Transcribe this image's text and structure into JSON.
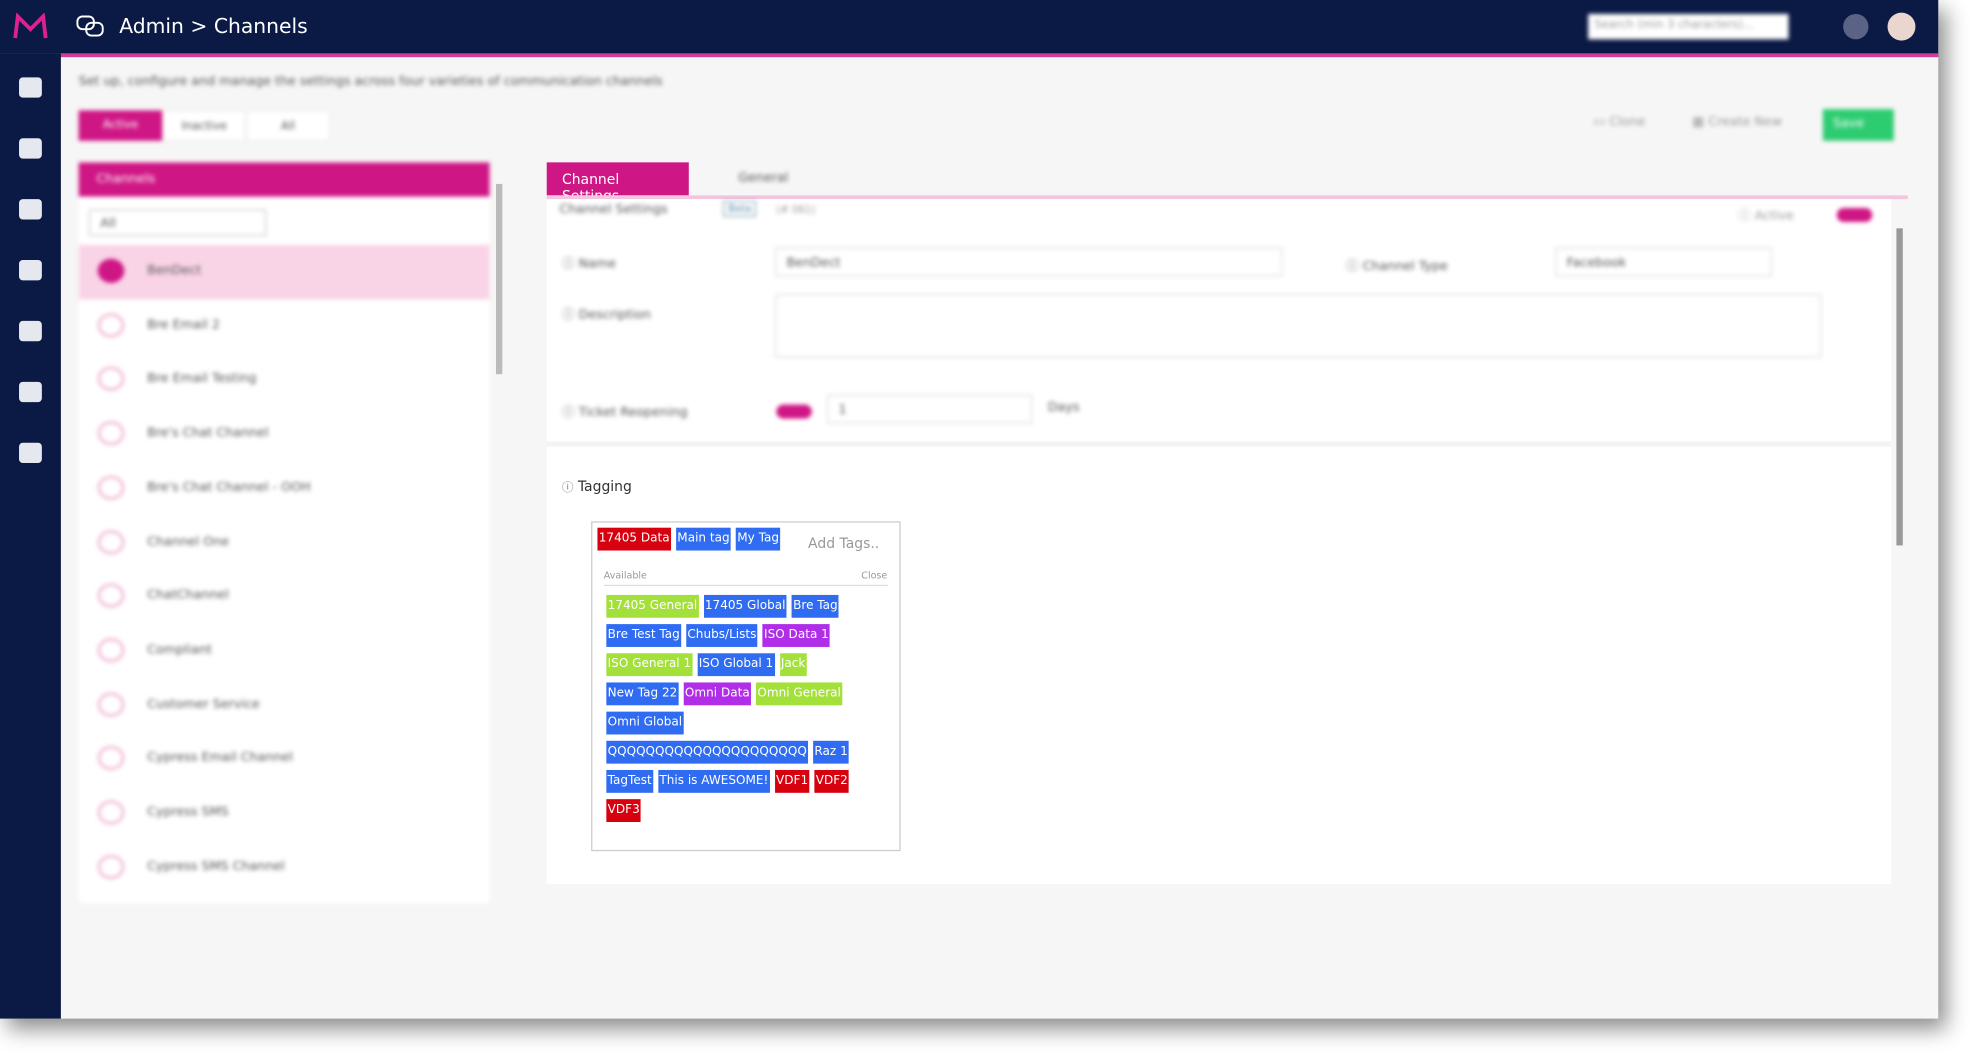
{
  "header": {
    "title": "Admin > Channels",
    "search_placeholder": "Search (min 3 characters)..."
  },
  "description": "Set up, configure and manage the settings across four varieties of communication channels",
  "filter_tabs": [
    "Active",
    "Inactive",
    "All"
  ],
  "actions": {
    "clone": "Clone",
    "create_new": "Create New",
    "save": "Save"
  },
  "channel_list": {
    "title": "Channels",
    "filter": "All",
    "items": [
      "BenDect",
      "Bre Email 2",
      "Bre Email Testing",
      "Bre's Chat Channel",
      "Bre's Chat Channel - OOH",
      "Channel One",
      "ChatChannel",
      "Compliant",
      "Customer Service",
      "Cypress Email Channel",
      "Cypress SMS",
      "Cypress SMS Channel"
    ]
  },
  "tabs": [
    "Channel Settings",
    "General"
  ],
  "settings": {
    "section": "Channel Settings",
    "badge": "Beta",
    "id": "(# 061)",
    "active_label": "Active",
    "name_label": "Name",
    "name_value": "BenDect",
    "channel_type_label": "Channel Type",
    "channel_type_value": "Facebook",
    "description_label": "Description",
    "ticket_reopening_label": "Ticket Reopening",
    "ticket_reopening_value": "1",
    "days_label": "Days"
  },
  "tagging": {
    "label": "Tagging",
    "add_placeholder": "Add Tags..",
    "available_label": "Available",
    "close_label": "Close",
    "selected": [
      {
        "text": "17405 Data",
        "color": "#d6000f"
      },
      {
        "text": "Main tag",
        "color": "#2f6cf2"
      },
      {
        "text": "My Tag",
        "color": "#2f6cf2"
      }
    ],
    "available": [
      {
        "text": "17405 General",
        "color": "#a4e03a"
      },
      {
        "text": "17405 Global",
        "color": "#2f6cf2"
      },
      {
        "text": "Bre Tag",
        "color": "#2f6cf2"
      },
      {
        "text": "Bre Test Tag",
        "color": "#2f6cf2"
      },
      {
        "text": "Chubs/Lists",
        "color": "#2f6cf2"
      },
      {
        "text": "ISO Data 1",
        "color": "#b02ee8"
      },
      {
        "text": "ISO General 1",
        "color": "#a4e03a"
      },
      {
        "text": "ISO Global 1",
        "color": "#2f6cf2"
      },
      {
        "text": "Jack",
        "color": "#a4e03a"
      },
      {
        "text": "New Tag 22",
        "color": "#2f6cf2"
      },
      {
        "text": "Omni Data",
        "color": "#b02ee8"
      },
      {
        "text": "Omni General",
        "color": "#a4e03a"
      },
      {
        "text": "Omni Global",
        "color": "#2f6cf2"
      },
      {
        "text": "QQQQQQQQQQQQQQQQQQQQQ",
        "color": "#2f6cf2"
      },
      {
        "text": "Raz 1",
        "color": "#2f6cf2"
      },
      {
        "text": "TagTest",
        "color": "#2f6cf2"
      },
      {
        "text": "This is AWESOME!",
        "color": "#2f6cf2"
      },
      {
        "text": "VDF1",
        "color": "#d6000f"
      },
      {
        "text": "VDF2",
        "color": "#d6000f"
      },
      {
        "text": "VDF3",
        "color": "#d6000f"
      }
    ]
  }
}
